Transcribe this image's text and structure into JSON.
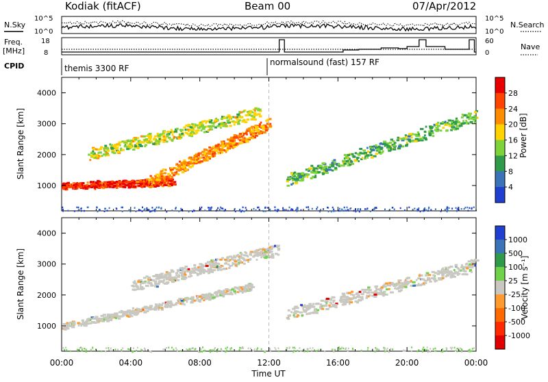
{
  "header": {
    "site": "Kodiak (fitACF)",
    "beam": "Beam 00",
    "date": "07/Apr/2012"
  },
  "noise_panel": {
    "left_label": "N.Sky",
    "right_label": "N.Search",
    "ticks_left": [
      "10^5",
      "10^0"
    ],
    "ticks_right": [
      "10^5",
      "10^0"
    ]
  },
  "freq_panel": {
    "left_label": "Freq.",
    "left_unit": "[MHz]",
    "ticks_left": [
      "18",
      "8"
    ],
    "right_label": "Nave",
    "ticks_right": [
      "60",
      "0"
    ]
  },
  "cpid_panel": {
    "label": "CPID",
    "modes": [
      {
        "name": "themis 3300 RF",
        "start_hour": 0,
        "end_hour": 12
      },
      {
        "name": "normalsound (fast) 157 RF",
        "start_hour": 12,
        "end_hour": 24
      }
    ]
  },
  "time_axis": {
    "label": "Time UT",
    "ticks": [
      "00:00",
      "04:00",
      "08:00",
      "12:00",
      "16:00",
      "20:00",
      "00:00"
    ],
    "range_hours": [
      0,
      24
    ]
  },
  "chart_data": [
    {
      "type": "heatmap",
      "name": "power",
      "ylabel": "Slant Range [km]",
      "yticks": [
        "4000",
        "3000",
        "2000",
        "1000"
      ],
      "ylim": [
        180,
        4500
      ],
      "colorbar": {
        "label": "Power [dB]",
        "ticks": [
          "28",
          "24",
          "20",
          "16",
          "12",
          "8",
          "4"
        ],
        "colors": [
          "#e80000",
          "#ff4400",
          "#ff8c00",
          "#ffd200",
          "#7ed23a",
          "#2f9a4a",
          "#3b73b8",
          "#1f3fd0"
        ]
      },
      "features": [
        {
          "desc": "strong echo band",
          "t_start": 0.0,
          "t_end": 6.5,
          "range_start": 1000,
          "range_end": 1150,
          "level_db": 26
        },
        {
          "desc": "rising echo band",
          "t_start": 5.0,
          "t_end": 12.0,
          "range_start": 1150,
          "range_end": 3000,
          "level_db": 20
        },
        {
          "desc": "upper streaks",
          "t_start": 1.5,
          "t_end": 11.5,
          "range_start": 2000,
          "range_end": 3400,
          "level_db": 14
        },
        {
          "desc": "late patches",
          "t_start": 13.0,
          "t_end": 24.0,
          "range_start": 1200,
          "range_end": 3300,
          "level_db": 10
        }
      ]
    },
    {
      "type": "heatmap",
      "name": "velocity",
      "ylabel": "Slant Range [km]",
      "yticks": [
        "4000",
        "3000",
        "2000",
        "1000"
      ],
      "ylim": [
        180,
        4500
      ],
      "colorbar": {
        "label": "Velocity [m s⁻¹]",
        "ticks": [
          "1000",
          "500",
          "100",
          "25",
          "-25",
          "-100",
          "-500",
          "-1000"
        ],
        "colors": [
          "#1f3fd0",
          "#3b73b8",
          "#2f9a4a",
          "#6fd24a",
          "#c8c8c0",
          "#ff9a2e",
          "#ff6a00",
          "#ff2a00",
          "#e00000"
        ]
      },
      "features": [
        {
          "desc": "ground scatter band",
          "t_start": 0.0,
          "t_end": 11.0,
          "range_start": 1000,
          "range_end": 2300,
          "velocity": 0
        },
        {
          "desc": "upper scatter",
          "t_start": 4.0,
          "t_end": 12.5,
          "range_start": 2300,
          "range_end": 3500,
          "velocity": 0
        },
        {
          "desc": "late scatter",
          "t_start": 13.0,
          "t_end": 24.0,
          "range_start": 1400,
          "range_end": 3000,
          "velocity": 0
        }
      ]
    }
  ]
}
